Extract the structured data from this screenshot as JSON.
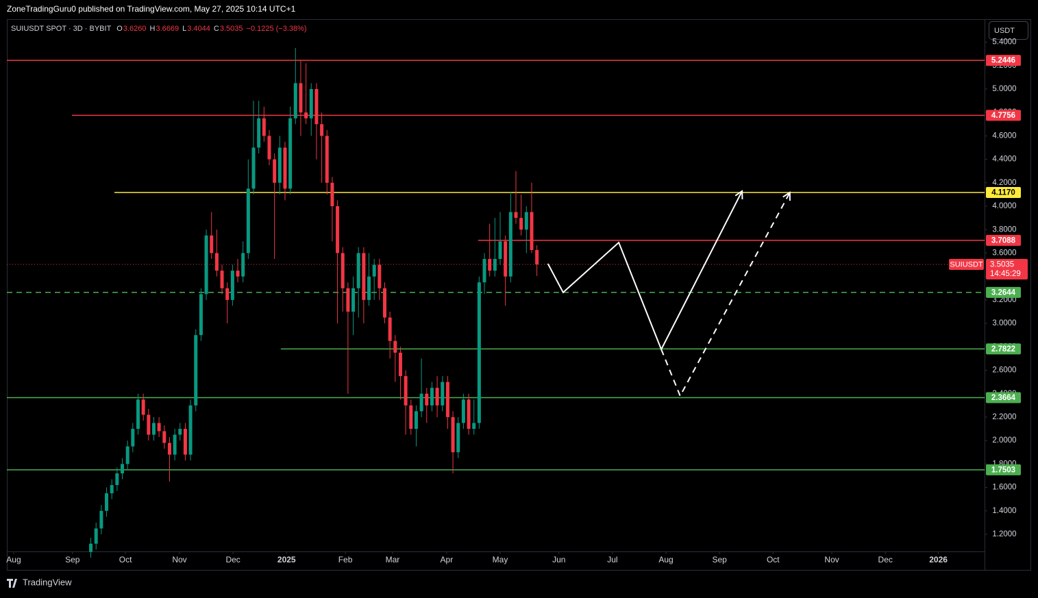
{
  "chart_data": {
    "type": "candlestick",
    "title": "ZoneTradingGuru0 published on TradingView.com, May 27, 2025 10:14 UTC+1",
    "symbol": "SUIUSDT SPOT · 3D · BYBIT",
    "ohlc_legend": [
      {
        "key": "O",
        "value": "3.6260"
      },
      {
        "key": "H",
        "value": "3.6669"
      },
      {
        "key": "L",
        "value": "3.4044"
      },
      {
        "key": "C",
        "value": "3.5035"
      }
    ],
    "change": "−0.1225 (−3.38%)",
    "currency": "USDT",
    "footer": "TradingView",
    "up_color": "#089981",
    "down_color": "#f23645",
    "xlim": [
      0,
      186.3
    ],
    "ylim": [
      0.896,
      5.596
    ],
    "xticks": [
      {
        "value": 1.3,
        "label": "Aug"
      },
      {
        "value": 12.5,
        "label": "Sep"
      },
      {
        "value": 22.6,
        "label": "Oct"
      },
      {
        "value": 32.9,
        "label": "Nov"
      },
      {
        "value": 43.1,
        "label": "Dec"
      },
      {
        "value": 53.3,
        "label": "2025"
      },
      {
        "value": 64.5,
        "label": "Feb"
      },
      {
        "value": 73.5,
        "label": "Mar"
      },
      {
        "value": 83.8,
        "label": "Apr"
      },
      {
        "value": 94.0,
        "label": "May"
      },
      {
        "value": 105.2,
        "label": "Jun"
      },
      {
        "value": 115.4,
        "label": "Jul"
      },
      {
        "value": 125.6,
        "label": "Aug"
      },
      {
        "value": 135.8,
        "label": "Sep"
      },
      {
        "value": 146.0,
        "label": "Oct"
      },
      {
        "value": 157.2,
        "label": "Nov"
      },
      {
        "value": 167.4,
        "label": "Dec"
      },
      {
        "value": 177.5,
        "label": "2026"
      }
    ],
    "yticks": [
      {
        "value": 1.2,
        "label": "1.2000"
      },
      {
        "value": 1.4,
        "label": "1.4000"
      },
      {
        "value": 1.6,
        "label": "1.6000"
      },
      {
        "value": 1.8,
        "label": "1.8000"
      },
      {
        "value": 2.0,
        "label": "2.0000"
      },
      {
        "value": 2.2,
        "label": "2.2000"
      },
      {
        "value": 2.4,
        "label": "2.4000"
      },
      {
        "value": 2.6,
        "label": "2.6000"
      },
      {
        "value": 2.8,
        "label": "2.8000"
      },
      {
        "value": 3.0,
        "label": "3.0000"
      },
      {
        "value": 3.2,
        "label": "3.2000"
      },
      {
        "value": 3.4,
        "label": "3.4000"
      },
      {
        "value": 3.6,
        "label": "3.6000"
      },
      {
        "value": 3.8,
        "label": "3.8000"
      },
      {
        "value": 4.0,
        "label": "4.0000"
      },
      {
        "value": 4.2,
        "label": "4.2000"
      },
      {
        "value": 4.4,
        "label": "4.4000"
      },
      {
        "value": 4.6,
        "label": "4.6000"
      },
      {
        "value": 4.8,
        "label": "4.8000"
      },
      {
        "value": 5.0,
        "label": "5.0000"
      },
      {
        "value": 5.2,
        "label": "5.2000"
      },
      {
        "value": 5.4,
        "label": "5.4000"
      }
    ],
    "x": [
      16,
      17,
      18,
      19,
      20,
      21,
      22,
      23,
      24,
      25,
      26,
      27,
      28,
      29,
      30,
      31,
      32,
      33,
      34,
      35,
      36,
      37,
      38,
      39,
      40,
      41,
      42,
      43,
      44,
      45,
      46,
      47,
      48,
      49,
      50,
      51,
      52,
      53,
      54,
      55,
      56,
      57,
      58,
      59,
      60,
      61,
      62,
      63,
      64,
      65,
      66,
      67,
      68,
      69,
      70,
      71,
      72,
      73,
      74,
      75,
      76,
      77,
      78,
      79,
      80,
      81,
      82,
      83,
      84,
      85,
      86,
      87,
      88,
      89,
      90,
      91,
      92,
      93,
      94,
      95,
      96,
      97,
      98,
      99,
      100,
      101
    ],
    "open": [
      1.05,
      1.12,
      1.25,
      1.4,
      1.55,
      1.62,
      1.72,
      1.8,
      1.95,
      2.1,
      2.35,
      2.22,
      2.05,
      2.15,
      2.08,
      1.98,
      1.88,
      2.05,
      2.1,
      1.88,
      2.3,
      2.9,
      3.25,
      3.75,
      3.6,
      3.45,
      3.3,
      3.2,
      3.45,
      3.4,
      3.6,
      4.15,
      4.5,
      4.75,
      4.6,
      4.4,
      4.2,
      4.5,
      4.15,
      4.75,
      5.05,
      4.8,
      4.75,
      5.0,
      4.7,
      4.6,
      4.2,
      4.0,
      3.6,
      3.3,
      3.1,
      3.3,
      3.6,
      3.2,
      3.4,
      3.5,
      3.3,
      3.05,
      2.85,
      2.75,
      2.55,
      2.3,
      2.1,
      2.25,
      2.4,
      2.3,
      2.45,
      2.3,
      2.5,
      2.2,
      1.9,
      2.15,
      2.35,
      2.1,
      2.15,
      3.35,
      3.55,
      3.45,
      3.55,
      3.7,
      3.4,
      3.95,
      3.9,
      3.8,
      3.95,
      3.626
    ],
    "high": [
      1.17,
      1.3,
      1.45,
      1.6,
      1.67,
      1.77,
      1.85,
      2.0,
      2.15,
      2.4,
      2.4,
      2.27,
      2.2,
      2.2,
      2.13,
      2.03,
      2.1,
      2.15,
      2.15,
      2.35,
      2.95,
      3.3,
      3.8,
      3.95,
      3.8,
      3.5,
      3.35,
      3.5,
      3.55,
      3.7,
      4.4,
      4.9,
      4.9,
      4.85,
      4.65,
      4.45,
      4.6,
      4.55,
      4.85,
      5.35,
      5.25,
      5.22,
      5.05,
      5.05,
      4.8,
      4.65,
      4.25,
      4.05,
      3.65,
      3.35,
      3.4,
      3.65,
      3.65,
      3.6,
      3.55,
      3.55,
      3.35,
      3.1,
      2.9,
      2.8,
      2.6,
      2.35,
      2.3,
      2.7,
      2.45,
      2.5,
      2.55,
      2.55,
      2.55,
      2.25,
      2.2,
      2.4,
      2.4,
      2.35,
      3.4,
      3.6,
      3.85,
      3.9,
      3.95,
      3.75,
      4.12,
      4.3,
      4.1,
      4.0,
      4.2,
      3.6669
    ],
    "low": [
      1.0,
      1.07,
      1.2,
      1.35,
      1.5,
      1.57,
      1.67,
      1.75,
      1.9,
      2.05,
      2.17,
      2.0,
      2.0,
      2.03,
      1.93,
      1.65,
      1.83,
      2.0,
      1.83,
      1.83,
      2.25,
      2.85,
      3.2,
      3.55,
      3.4,
      3.25,
      3.0,
      3.15,
      3.35,
      3.35,
      3.55,
      4.1,
      4.45,
      4.55,
      4.35,
      3.55,
      4.1,
      4.05,
      4.1,
      4.7,
      4.6,
      4.7,
      4.6,
      4.4,
      4.2,
      4.1,
      3.7,
      3.0,
      3.1,
      2.4,
      2.9,
      3.05,
      3.0,
      3.15,
      3.2,
      3.2,
      3.0,
      2.7,
      2.5,
      2.35,
      2.05,
      2.05,
      1.95,
      2.2,
      2.15,
      2.25,
      2.2,
      2.25,
      2.1,
      1.72,
      1.85,
      2.1,
      2.05,
      2.05,
      2.1,
      3.25,
      3.4,
      3.4,
      3.5,
      3.15,
      3.35,
      3.85,
      3.75,
      3.6,
      3.6,
      3.4044
    ],
    "close": [
      1.12,
      1.25,
      1.4,
      1.55,
      1.62,
      1.72,
      1.8,
      1.95,
      2.1,
      2.35,
      2.22,
      2.05,
      2.15,
      2.08,
      1.98,
      1.88,
      2.05,
      2.1,
      1.88,
      2.3,
      2.9,
      3.25,
      3.75,
      3.6,
      3.45,
      3.3,
      3.2,
      3.45,
      3.4,
      3.6,
      4.15,
      4.5,
      4.75,
      4.6,
      4.4,
      4.2,
      4.5,
      4.15,
      4.75,
      5.05,
      4.8,
      4.75,
      5.0,
      4.7,
      4.6,
      4.2,
      4.0,
      3.6,
      3.3,
      3.1,
      3.3,
      3.6,
      3.2,
      3.4,
      3.5,
      3.3,
      3.05,
      2.85,
      2.75,
      2.55,
      2.3,
      2.1,
      2.25,
      2.4,
      2.3,
      2.45,
      2.3,
      2.5,
      2.2,
      1.9,
      2.15,
      2.35,
      2.1,
      2.15,
      3.35,
      3.55,
      3.45,
      3.55,
      3.7,
      3.4,
      3.95,
      3.9,
      3.8,
      3.95,
      3.626,
      3.5035
    ],
    "levels": [
      {
        "value": 5.2446,
        "label": "5.2446",
        "color": "#f23645",
        "from": 0,
        "style": "solid"
      },
      {
        "value": 4.7756,
        "label": "4.7756",
        "color": "#f23645",
        "from": 12.4,
        "style": "solid"
      },
      {
        "value": 4.117,
        "label": "4.1170",
        "color": "#ffeb3b",
        "from": 20.5,
        "style": "solid"
      },
      {
        "value": 3.7088,
        "label": "3.7088",
        "color": "#f23645",
        "from": 89.8,
        "style": "solid"
      },
      {
        "value": 3.2644,
        "label": "3.2644",
        "color": "#4caf50",
        "from": 0,
        "style": "dashed"
      },
      {
        "value": 2.7822,
        "label": "2.7822",
        "color": "#4caf50",
        "from": 52.2,
        "style": "solid"
      },
      {
        "value": 2.3664,
        "label": "2.3664",
        "color": "#4caf50",
        "from": 0,
        "style": "solid"
      },
      {
        "value": 1.7503,
        "label": "1.7503",
        "color": "#4caf50",
        "from": 0,
        "style": "solid"
      }
    ],
    "last_price": {
      "value": 3.5035,
      "label": "3.5035",
      "symbol": "SUIUSDT",
      "countdown": "14:45:29",
      "color": "#f23645"
    },
    "drawings": [
      {
        "style": "solid",
        "color": "#ffffff",
        "x": [
          103.1,
          106.0,
          116.6,
          124.7,
          140.1
        ],
        "y": [
          3.509,
          3.264,
          3.69,
          2.778,
          4.129
        ]
      },
      {
        "style": "dashed",
        "color": "#ffffff",
        "x": [
          124.7,
          128.3,
          149.2
        ],
        "y": [
          2.778,
          2.381,
          4.117
        ]
      }
    ]
  }
}
